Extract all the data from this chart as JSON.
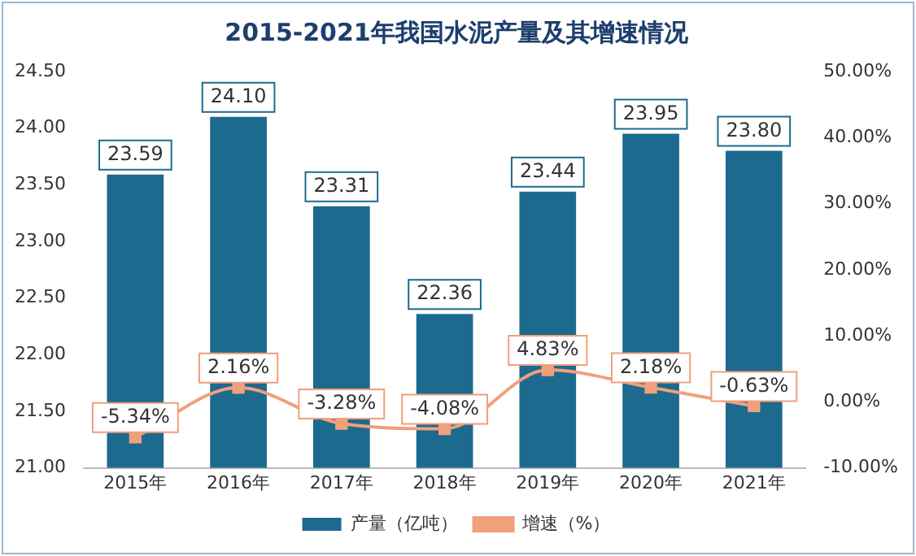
{
  "chart_data": {
    "type": "bar",
    "title": "2015-2021年我国水泥产量及其增速情况",
    "categories": [
      "2015年",
      "2016年",
      "2017年",
      "2018年",
      "2019年",
      "2020年",
      "2021年"
    ],
    "series": [
      {
        "name": "产量（亿吨）",
        "color": "#1d6a8f",
        "values": [
          23.59,
          24.1,
          23.31,
          22.36,
          23.44,
          23.95,
          23.8
        ],
        "value_labels": [
          "23.59",
          "24.10",
          "23.31",
          "22.36",
          "23.44",
          "23.95",
          "23.80"
        ]
      },
      {
        "name": "增速（%）",
        "type": "line",
        "axis": "y2",
        "color": "#f0a07a",
        "marker": "square",
        "values": [
          -5.34,
          2.16,
          -3.28,
          -4.08,
          4.83,
          2.18,
          -0.63
        ],
        "value_labels": [
          "-5.34%",
          "2.16%",
          "-3.28%",
          "-4.08%",
          "4.83%",
          "2.18%",
          "-0.63%"
        ]
      }
    ],
    "ylim": [
      21,
      24.5
    ],
    "yticks": [
      {
        "value": 21,
        "label": "21.00"
      },
      {
        "value": 21.5,
        "label": "21.50"
      },
      {
        "value": 22,
        "label": "22.00"
      },
      {
        "value": 22.5,
        "label": "22.50"
      },
      {
        "value": 23,
        "label": "23.00"
      },
      {
        "value": 23.5,
        "label": "23.50"
      },
      {
        "value": 24,
        "label": "24.00"
      },
      {
        "value": 24.5,
        "label": "24.50"
      }
    ],
    "y2lim": [
      -10,
      50
    ],
    "y2ticks": [
      {
        "value": -10,
        "label": "-10.00%"
      },
      {
        "value": 0,
        "label": "0.00%"
      },
      {
        "value": 10,
        "label": "10.00%"
      },
      {
        "value": 20,
        "label": "20.00%"
      },
      {
        "value": 30,
        "label": "30.00%"
      },
      {
        "value": 40,
        "label": "40.00%"
      },
      {
        "value": 50,
        "label": "50.00%"
      }
    ],
    "legend": "bottom"
  }
}
